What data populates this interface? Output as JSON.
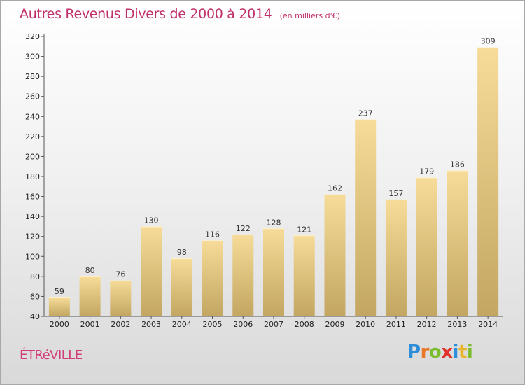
{
  "chart_data": {
    "type": "bar",
    "title": "Autres Revenus Divers de 2000 à 2014",
    "subtitle": "(en milliers d'€)",
    "categories": [
      "2000",
      "2001",
      "2002",
      "2003",
      "2004",
      "2005",
      "2006",
      "2007",
      "2008",
      "2009",
      "2010",
      "2011",
      "2012",
      "2013",
      "2014"
    ],
    "values": [
      59,
      80,
      76,
      130,
      98,
      116,
      122,
      128,
      121,
      162,
      237,
      157,
      179,
      186,
      309
    ],
    "yticks": [
      40,
      60,
      80,
      100,
      120,
      140,
      160,
      180,
      200,
      220,
      240,
      260,
      280,
      300,
      320
    ],
    "ylim": [
      40,
      320
    ],
    "xlabel": "",
    "ylabel": "",
    "grid": false,
    "bar_color_top": "#f6dc98",
    "bar_color_bottom": "#c2a662"
  },
  "footer": {
    "commune": "ÉTRéVILLE",
    "logo_letters": [
      "P",
      "r",
      "o",
      "x",
      "i",
      "t",
      "i"
    ],
    "logo_colors": [
      "#2e8fd8",
      "#e8782a",
      "#7bbd2e",
      "#e0332e",
      "#2e8fd8",
      "#e8b52a",
      "#7bbd2e"
    ]
  },
  "colors": {
    "title": "#c0306a",
    "commune": "#d23c78"
  }
}
